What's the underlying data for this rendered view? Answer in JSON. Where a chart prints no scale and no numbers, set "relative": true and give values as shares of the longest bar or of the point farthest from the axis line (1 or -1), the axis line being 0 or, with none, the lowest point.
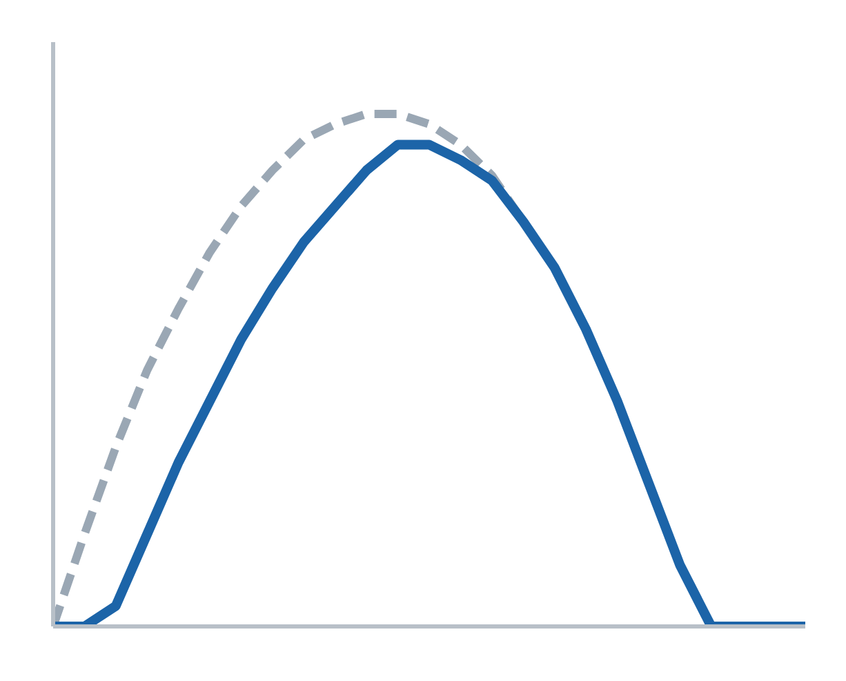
{
  "chart_data": {
    "type": "line",
    "relative": true,
    "categories": [
      null,
      null,
      null,
      null,
      null,
      null,
      null,
      null,
      null,
      null,
      null,
      null,
      null,
      null,
      null,
      null,
      null,
      null,
      null,
      null,
      null,
      null,
      null,
      null,
      null
    ],
    "series": [
      {
        "color": "#9aa7b4",
        "line_style": "dashed",
        "values": [
          0,
          0.18,
          0.35,
          0.5,
          0.62,
          0.73,
          0.82,
          0.89,
          0.95,
          0.98,
          1,
          1,
          0.98,
          0.94,
          0.88,
          0.79,
          null,
          null,
          null,
          null,
          null,
          null,
          null,
          null,
          null
        ]
      },
      {
        "color": "#1c64a8",
        "line_style": "solid",
        "values": [
          0,
          0,
          0.04,
          0.18,
          0.32,
          0.44,
          0.56,
          0.66,
          0.75,
          0.82,
          0.89,
          0.94,
          0.94,
          0.91,
          0.87,
          0.79,
          0.7,
          0.58,
          0.44,
          0.28,
          0.12,
          0,
          0,
          0,
          0
        ]
      }
    ],
    "marker": "none"
  }
}
